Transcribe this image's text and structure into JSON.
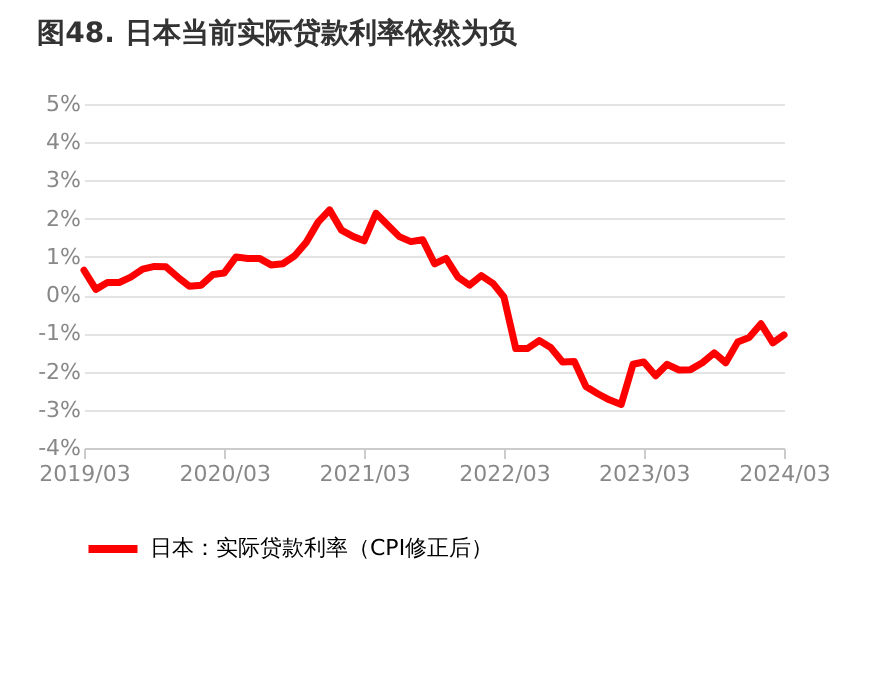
{
  "chart_data": {
    "type": "line",
    "title": "图48. 日本当前实际贷款利率依然为负",
    "x": [
      "2019-03",
      "2019-04",
      "2019-05",
      "2019-06",
      "2019-07",
      "2019-08",
      "2019-09",
      "2019-10",
      "2019-11",
      "2019-12",
      "2020-01",
      "2020-02",
      "2020-03",
      "2020-04",
      "2020-05",
      "2020-06",
      "2020-07",
      "2020-08",
      "2020-09",
      "2020-10",
      "2020-11",
      "2020-12",
      "2021-01",
      "2021-02",
      "2021-03",
      "2021-04",
      "2021-05",
      "2021-06",
      "2021-07",
      "2021-08",
      "2021-09",
      "2021-10",
      "2021-11",
      "2021-12",
      "2022-01",
      "2022-02",
      "2022-03",
      "2022-04",
      "2022-05",
      "2022-06",
      "2022-07",
      "2022-08",
      "2022-09",
      "2022-10",
      "2022-11",
      "2022-12",
      "2023-01",
      "2023-02",
      "2023-03",
      "2023-04",
      "2023-05",
      "2023-06",
      "2023-07",
      "2023-08",
      "2023-09",
      "2023-10",
      "2023-11",
      "2023-12",
      "2024-01",
      "2024-02",
      "2024-03"
    ],
    "series": [
      {
        "name": "日本：实际贷款利率（CPI修正后）",
        "color": "#ff0000",
        "values": [
          0.65,
          0.15,
          0.33,
          0.33,
          0.47,
          0.68,
          0.75,
          0.74,
          0.47,
          0.23,
          0.26,
          0.54,
          0.58,
          1.0,
          0.96,
          0.96,
          0.79,
          0.82,
          1.03,
          1.38,
          1.91,
          2.23,
          1.7,
          1.53,
          1.42,
          2.14,
          1.84,
          1.53,
          1.4,
          1.45,
          0.82,
          0.96,
          0.47,
          0.26,
          0.51,
          0.3,
          -0.05,
          -1.4,
          -1.4,
          -1.19,
          -1.37,
          -1.75,
          -1.74,
          -2.39,
          -2.58,
          -2.74,
          -2.86,
          -1.81,
          -1.75,
          -2.11,
          -1.81,
          -1.96,
          -1.95,
          -1.77,
          -1.51,
          -1.77,
          -1.23,
          -1.11,
          -0.75,
          -1.25,
          -1.04
        ]
      }
    ],
    "xlim": [
      "2019-03",
      "2024-03"
    ],
    "xticks": [
      {
        "value": "2019-03",
        "label": "2019/03"
      },
      {
        "value": "2020-03",
        "label": "2020/03"
      },
      {
        "value": "2021-03",
        "label": "2021/03"
      },
      {
        "value": "2022-03",
        "label": "2022/03"
      },
      {
        "value": "2023-03",
        "label": "2023/03"
      },
      {
        "value": "2024-03",
        "label": "2024/03"
      }
    ],
    "ylim": [
      -4,
      5
    ],
    "yticks": [
      {
        "value": -4,
        "label": "-4%"
      },
      {
        "value": -3,
        "label": "-3%"
      },
      {
        "value": -2,
        "label": "-2%"
      },
      {
        "value": -1,
        "label": "-1%"
      },
      {
        "value": 0,
        "label": "0%"
      },
      {
        "value": 1,
        "label": "1%"
      },
      {
        "value": 2,
        "label": "2%"
      },
      {
        "value": 3,
        "label": "3%"
      },
      {
        "value": 4,
        "label": "4%"
      },
      {
        "value": 5,
        "label": "5%"
      }
    ],
    "grid": "y",
    "legend": "bottom",
    "marker": "none",
    "line_style": "solid"
  }
}
